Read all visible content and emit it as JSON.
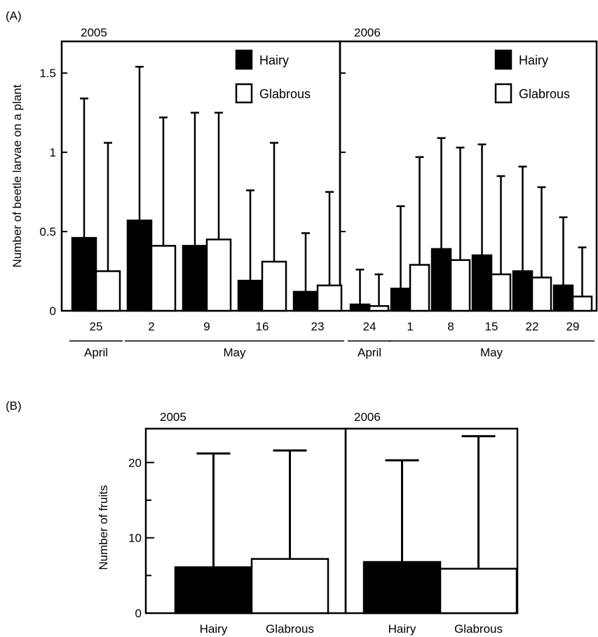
{
  "chart_data": [
    {
      "type": "bar",
      "panel_label": "(A)",
      "ylabel": "Number of beetle larvae on a plant",
      "ylim": [
        0,
        1.7
      ],
      "yticks": [
        0,
        0.5,
        1,
        1.5
      ],
      "ytick_labels": [
        "0",
        "0.5",
        "1",
        "1.5"
      ],
      "grid": false,
      "legend_position": "top-right",
      "series_names": [
        "Hairy",
        "Glabrous"
      ],
      "series_colors": [
        "#000000",
        "#ffffff"
      ],
      "error_bars": "upper",
      "groups": [
        {
          "year": "2005",
          "categories": [
            "25",
            "2",
            "9",
            "16",
            "23"
          ],
          "months": [
            {
              "label": "April",
              "from": 0,
              "to": 0
            },
            {
              "label": "May",
              "from": 1,
              "to": 4
            }
          ],
          "series": [
            {
              "name": "Hairy",
              "values": [
                0.46,
                0.57,
                0.41,
                0.19,
                0.12
              ],
              "errors": [
                0.88,
                0.97,
                0.84,
                0.57,
                0.37
              ]
            },
            {
              "name": "Glabrous",
              "values": [
                0.25,
                0.41,
                0.45,
                0.31,
                0.16
              ],
              "errors": [
                0.81,
                0.81,
                0.8,
                0.75,
                0.59
              ]
            }
          ]
        },
        {
          "year": "2006",
          "categories": [
            "24",
            "1",
            "8",
            "15",
            "22",
            "29"
          ],
          "months": [
            {
              "label": "April",
              "from": 0,
              "to": 0
            },
            {
              "label": "May",
              "from": 1,
              "to": 5
            }
          ],
          "series": [
            {
              "name": "Hairy",
              "values": [
                0.04,
                0.14,
                0.39,
                0.35,
                0.25,
                0.16
              ],
              "errors": [
                0.22,
                0.52,
                0.7,
                0.7,
                0.66,
                0.43
              ]
            },
            {
              "name": "Glabrous",
              "values": [
                0.03,
                0.29,
                0.32,
                0.23,
                0.21,
                0.09
              ],
              "errors": [
                0.2,
                0.68,
                0.71,
                0.62,
                0.57,
                0.31
              ]
            }
          ]
        }
      ]
    },
    {
      "type": "bar",
      "panel_label": "(B)",
      "ylabel": "Number of fruits",
      "ylim": [
        0,
        24.5
      ],
      "yticks": [
        0,
        10,
        20
      ],
      "minor_yticks": [
        5,
        15
      ],
      "ytick_labels": [
        "0",
        "10",
        "20"
      ],
      "grid": false,
      "error_bars": "upper",
      "groups": [
        {
          "year": "2005",
          "categories": [
            "Hairy",
            "Glabrous"
          ],
          "values": [
            6.1,
            7.2
          ],
          "errors": [
            15.1,
            14.4
          ],
          "colors": [
            "#000000",
            "#ffffff"
          ]
        },
        {
          "year": "2006",
          "categories": [
            "Hairy",
            "Glabrous"
          ],
          "values": [
            6.8,
            5.9
          ],
          "errors": [
            13.5,
            17.6
          ],
          "colors": [
            "#000000",
            "#ffffff"
          ]
        }
      ]
    }
  ]
}
